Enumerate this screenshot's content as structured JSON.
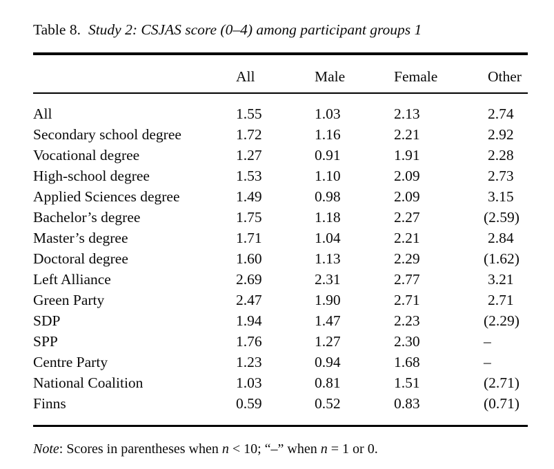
{
  "caption": {
    "label": "Table 8.",
    "title": "Study 2: CSJAS score (0–4) among participant groups 1"
  },
  "table": {
    "columns": [
      "",
      "All",
      "Male",
      "Female",
      "Other"
    ],
    "rows": [
      {
        "label": "All",
        "values": [
          "1.55",
          "1.03",
          "2.13",
          "2.74"
        ]
      },
      {
        "label": "Secondary school degree",
        "values": [
          "1.72",
          "1.16",
          "2.21",
          "2.92"
        ]
      },
      {
        "label": "Vocational degree",
        "values": [
          "1.27",
          "0.91",
          "1.91",
          "2.28"
        ]
      },
      {
        "label": "High-school degree",
        "values": [
          "1.53",
          "1.10",
          "2.09",
          "2.73"
        ]
      },
      {
        "label": "Applied Sciences degree",
        "values": [
          "1.49",
          "0.98",
          "2.09",
          "3.15"
        ]
      },
      {
        "label": "Bachelor’s degree",
        "values": [
          "1.75",
          "1.18",
          "2.27",
          "(2.59)"
        ]
      },
      {
        "label": "Master’s degree",
        "values": [
          "1.71",
          "1.04",
          "2.21",
          "2.84"
        ]
      },
      {
        "label": "Doctoral degree",
        "values": [
          "1.60",
          "1.13",
          "2.29",
          "(1.62)"
        ]
      },
      {
        "label": "Left Alliance",
        "values": [
          "2.69",
          "2.31",
          "2.77",
          "3.21"
        ]
      },
      {
        "label": "Green Party",
        "values": [
          "2.47",
          "1.90",
          "2.71",
          "2.71"
        ]
      },
      {
        "label": "SDP",
        "values": [
          "1.94",
          "1.47",
          "2.23",
          "(2.29)"
        ]
      },
      {
        "label": "SPP",
        "values": [
          "1.76",
          "1.27",
          "2.30",
          "–"
        ]
      },
      {
        "label": "Centre Party",
        "values": [
          "1.23",
          "0.94",
          "1.68",
          "–"
        ]
      },
      {
        "label": "National Coalition",
        "values": [
          "1.03",
          "0.81",
          "1.51",
          "(2.71)"
        ]
      },
      {
        "label": "Finns",
        "values": [
          "0.59",
          "0.52",
          "0.83",
          "(0.71)"
        ]
      }
    ]
  },
  "note": {
    "segments": [
      {
        "text": "Note",
        "italic": true
      },
      {
        "text": ": Scores in parentheses when ",
        "italic": false
      },
      {
        "text": "n",
        "italic": true
      },
      {
        "text": " < 10; “–” when ",
        "italic": false
      },
      {
        "text": "n",
        "italic": true
      },
      {
        "text": " = 1 or 0.",
        "italic": false
      }
    ]
  }
}
